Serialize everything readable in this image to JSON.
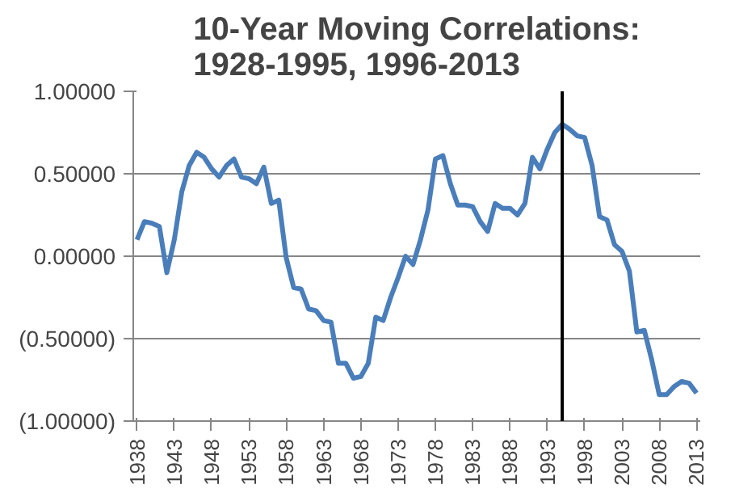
{
  "chart_data": {
    "type": "line",
    "title": "10-Year Moving Correlations:\n1928-1995, 1996-2013",
    "x": [
      1938,
      1939,
      1940,
      1941,
      1942,
      1943,
      1944,
      1945,
      1946,
      1947,
      1948,
      1949,
      1950,
      1951,
      1952,
      1953,
      1954,
      1955,
      1956,
      1957,
      1958,
      1959,
      1960,
      1961,
      1962,
      1963,
      1964,
      1965,
      1966,
      1967,
      1968,
      1969,
      1970,
      1971,
      1972,
      1973,
      1974,
      1975,
      1976,
      1977,
      1978,
      1979,
      1980,
      1981,
      1982,
      1983,
      1984,
      1985,
      1986,
      1987,
      1988,
      1989,
      1990,
      1991,
      1992,
      1993,
      1994,
      1995,
      1996,
      1997,
      1998,
      1999,
      2000,
      2001,
      2002,
      2003,
      2004,
      2005,
      2006,
      2007,
      2008,
      2009,
      2010,
      2011,
      2012,
      2013
    ],
    "series": [
      {
        "color": "#4a7ebb",
        "values": [
          0.1,
          0.21,
          0.2,
          0.18,
          -0.1,
          0.1,
          0.39,
          0.55,
          0.63,
          0.6,
          0.53,
          0.48,
          0.55,
          0.59,
          0.48,
          0.47,
          0.44,
          0.54,
          0.32,
          0.34,
          -0.01,
          -0.19,
          -0.2,
          -0.32,
          -0.33,
          -0.39,
          -0.4,
          -0.65,
          -0.65,
          -0.74,
          -0.73,
          -0.65,
          -0.37,
          -0.39,
          -0.25,
          -0.13,
          0.0,
          -0.05,
          0.1,
          0.28,
          0.59,
          0.61,
          0.44,
          0.31,
          0.31,
          0.3,
          0.21,
          0.15,
          0.32,
          0.29,
          0.29,
          0.25,
          0.32,
          0.6,
          0.53,
          0.65,
          0.75,
          0.8,
          0.77,
          0.73,
          0.72,
          0.55,
          0.24,
          0.22,
          0.07,
          0.03,
          -0.09,
          -0.46,
          -0.45,
          -0.63,
          -0.84,
          -0.84,
          -0.79,
          -0.76,
          -0.77,
          -0.83
        ]
      }
    ],
    "xlim": [
      1937.5,
      2013.5
    ],
    "xticks": [
      1938,
      1943,
      1948,
      1953,
      1958,
      1963,
      1968,
      1973,
      1978,
      1983,
      1988,
      1993,
      1998,
      2003,
      2008,
      2013
    ],
    "ylim": [
      -1,
      1
    ],
    "yticks": [
      {
        "value": 1,
        "label": "1.00000"
      },
      {
        "value": 0.5,
        "label": "0.50000"
      },
      {
        "value": 0,
        "label": "0.00000"
      },
      {
        "value": -0.5,
        "label": "(0.50000)"
      },
      {
        "value": -1,
        "label": "(1.00000)"
      }
    ],
    "grid": "y",
    "line_style": "solid",
    "ref_lines": [
      {
        "axis": "x",
        "value": 1995,
        "color": "#000000"
      }
    ]
  }
}
